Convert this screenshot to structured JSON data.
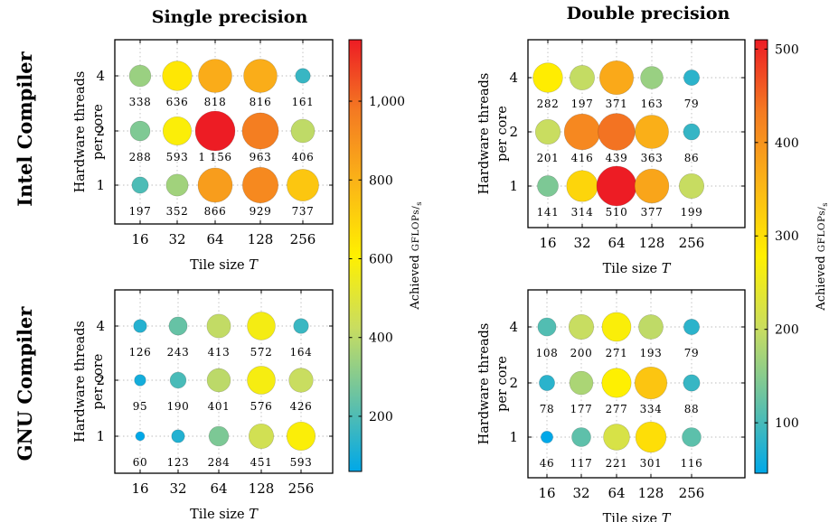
{
  "column_titles": [
    "Single precision",
    "Double precision"
  ],
  "row_titles": [
    "Intel Compiler",
    "GNU Compiler"
  ],
  "chart_data": [
    {
      "type": "scatter",
      "encoding": "bubble",
      "id": "intel-single",
      "xlabel": "Tile size T",
      "ylabel": "Hardware threads per core",
      "x_categories": [
        "16",
        "32",
        "64",
        "128",
        "256"
      ],
      "y_categories": [
        "1",
        "2",
        "4"
      ],
      "values": [
        [
          197,
          352,
          866,
          929,
          737
        ],
        [
          288,
          593,
          1156,
          963,
          406
        ],
        [
          338,
          636,
          818,
          816,
          161
        ]
      ],
      "labels": [
        [
          "197",
          "352",
          "866",
          "929",
          "737"
        ],
        [
          "288",
          "593",
          "1 156",
          "963",
          "406"
        ],
        [
          "338",
          "636",
          "818",
          "816",
          "161"
        ]
      ],
      "color_range": [
        60,
        1156
      ],
      "grid": true
    },
    {
      "type": "scatter",
      "encoding": "bubble",
      "id": "intel-double",
      "xlabel": "Tile size T",
      "ylabel": "Hardware threads per core",
      "x_categories": [
        "16",
        "32",
        "64",
        "128",
        "256"
      ],
      "y_categories": [
        "1",
        "2",
        "4"
      ],
      "values": [
        [
          141,
          314,
          510,
          377,
          199
        ],
        [
          201,
          416,
          439,
          363,
          86
        ],
        [
          282,
          197,
          371,
          163,
          79
        ]
      ],
      "labels": [
        [
          "141",
          "314",
          "510",
          "377",
          "199"
        ],
        [
          "201",
          "416",
          "439",
          "363",
          "86"
        ],
        [
          "282",
          "197",
          "371",
          "163",
          "79"
        ]
      ],
      "color_range": [
        46,
        510
      ],
      "grid": true
    },
    {
      "type": "scatter",
      "encoding": "bubble",
      "id": "gnu-single",
      "xlabel": "Tile size T",
      "ylabel": "Hardware threads per core",
      "x_categories": [
        "16",
        "32",
        "64",
        "128",
        "256"
      ],
      "y_categories": [
        "1",
        "2",
        "4"
      ],
      "values": [
        [
          60,
          123,
          284,
          451,
          593
        ],
        [
          95,
          190,
          401,
          576,
          426
        ],
        [
          126,
          243,
          413,
          572,
          164
        ]
      ],
      "labels": [
        [
          "60",
          "123",
          "284",
          "451",
          "593"
        ],
        [
          "95",
          "190",
          "401",
          "576",
          "426"
        ],
        [
          "126",
          "243",
          "413",
          "572",
          "164"
        ]
      ],
      "color_range": [
        60,
        1156
      ],
      "grid": true
    },
    {
      "type": "scatter",
      "encoding": "bubble",
      "id": "gnu-double",
      "xlabel": "Tile size T",
      "ylabel": "Hardware threads per core",
      "x_categories": [
        "16",
        "32",
        "64",
        "128",
        "256"
      ],
      "y_categories": [
        "1",
        "2",
        "4"
      ],
      "values": [
        [
          46,
          117,
          221,
          301,
          116
        ],
        [
          78,
          177,
          277,
          334,
          88
        ],
        [
          108,
          200,
          271,
          193,
          79
        ]
      ],
      "labels": [
        [
          "46",
          "117",
          "221",
          "301",
          "116"
        ],
        [
          "78",
          "177",
          "277",
          "334",
          "88"
        ],
        [
          "108",
          "200",
          "271",
          "193",
          "79"
        ]
      ],
      "color_range": [
        46,
        510
      ],
      "grid": true
    }
  ],
  "colorbars": [
    {
      "id": "single",
      "range": [
        60,
        1156
      ],
      "ticks": [
        200,
        400,
        600,
        800,
        1000
      ],
      "tick_labels": [
        "200",
        "400",
        "600",
        "800",
        "1,000"
      ],
      "label": "Achieved GFLOPs/s"
    },
    {
      "id": "double",
      "range": [
        46,
        510
      ],
      "ticks": [
        100,
        200,
        300,
        400,
        500
      ],
      "tick_labels": [
        "100",
        "200",
        "300",
        "400",
        "500"
      ],
      "label": "Achieved GFLOPs/s"
    }
  ],
  "colormap": [
    "#00a8e8",
    "#66c2a5",
    "#c9dd60",
    "#fff000",
    "#fbb517",
    "#f47b22",
    "#ed1c24"
  ]
}
